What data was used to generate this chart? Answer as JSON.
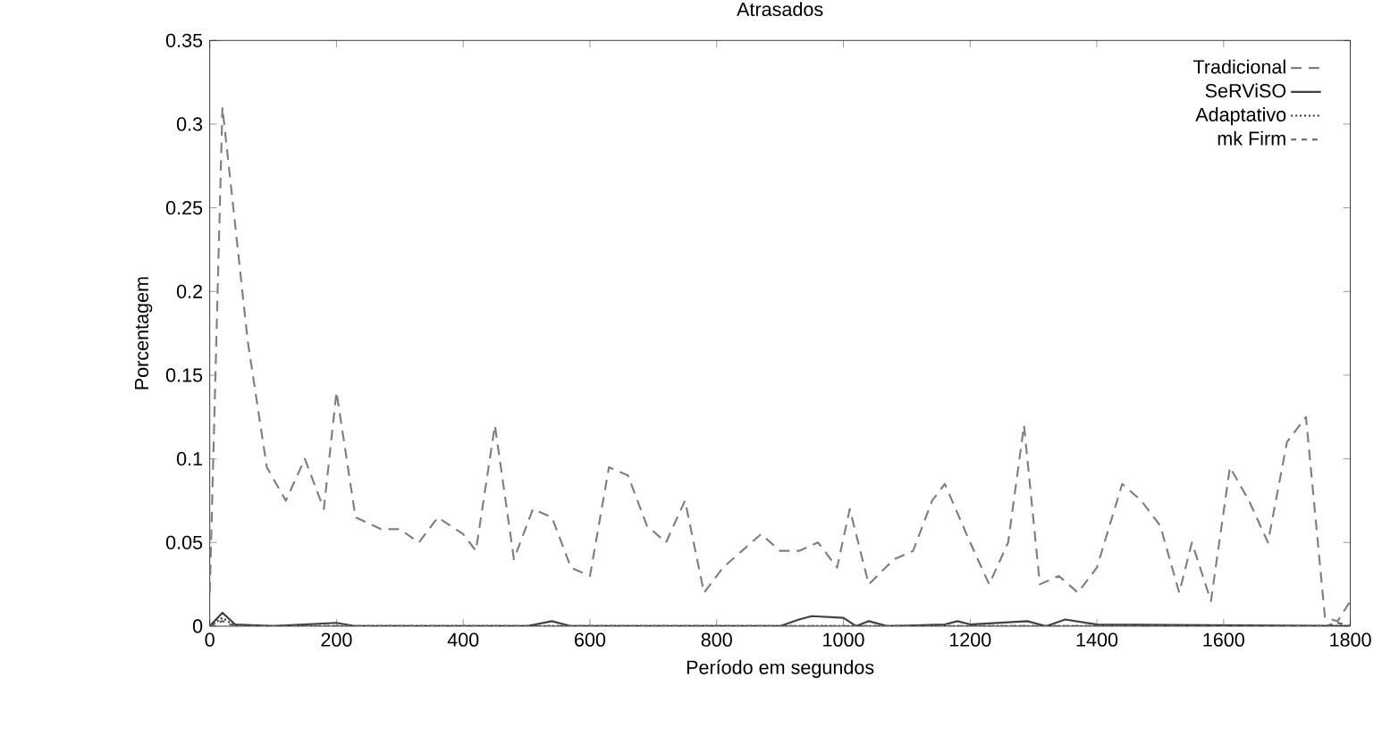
{
  "chart_data": {
    "type": "line",
    "title": "Atrasados",
    "xlabel": "Período em segundos",
    "ylabel": "Porcentagem",
    "xlim": [
      0,
      1800
    ],
    "xticks": [
      0,
      200,
      400,
      600,
      800,
      1000,
      1200,
      1400,
      1600,
      1800
    ],
    "ylim": [
      0,
      0.35
    ],
    "yticks": [
      0,
      0.05,
      0.1,
      0.15,
      0.2,
      0.25,
      0.3,
      0.35
    ],
    "legend": "top right",
    "grid": false,
    "marker": "none",
    "series": [
      {
        "name": "Tradicional",
        "color": "#808080",
        "line_style": "dashed",
        "x": [
          0,
          20,
          40,
          60,
          90,
          120,
          150,
          180,
          200,
          230,
          270,
          300,
          330,
          360,
          400,
          420,
          450,
          480,
          510,
          540,
          570,
          600,
          630,
          660,
          690,
          720,
          750,
          780,
          810,
          840,
          870,
          900,
          930,
          960,
          990,
          1010,
          1040,
          1080,
          1110,
          1140,
          1160,
          1200,
          1230,
          1260,
          1285,
          1310,
          1340,
          1370,
          1400,
          1440,
          1470,
          1500,
          1530,
          1550,
          1580,
          1610,
          1640,
          1670,
          1700,
          1730,
          1760,
          1780,
          1800
        ],
        "values": [
          0.02,
          0.31,
          0.24,
          0.17,
          0.095,
          0.075,
          0.1,
          0.07,
          0.14,
          0.065,
          0.058,
          0.058,
          0.05,
          0.065,
          0.055,
          0.045,
          0.12,
          0.04,
          0.07,
          0.065,
          0.035,
          0.03,
          0.095,
          0.09,
          0.06,
          0.05,
          0.075,
          0.02,
          0.035,
          0.045,
          0.055,
          0.045,
          0.045,
          0.05,
          0.035,
          0.07,
          0.025,
          0.04,
          0.045,
          0.075,
          0.085,
          0.05,
          0.025,
          0.05,
          0.12,
          0.025,
          0.03,
          0.02,
          0.035,
          0.085,
          0.075,
          0.06,
          0.02,
          0.05,
          0.015,
          0.095,
          0.075,
          0.05,
          0.11,
          0.125,
          0.005,
          0.003,
          0.015
        ]
      },
      {
        "name": "SeRViSO",
        "color": "#404040",
        "line_style": "solid",
        "x": [
          0,
          20,
          40,
          100,
          200,
          230,
          500,
          540,
          570,
          900,
          930,
          950,
          1000,
          1020,
          1040,
          1070,
          1160,
          1180,
          1200,
          1290,
          1320,
          1350,
          1400,
          1800
        ],
        "values": [
          0,
          0.008,
          0.001,
          0,
          0.002,
          0,
          0,
          0.003,
          0,
          0,
          0.004,
          0.006,
          0.005,
          0,
          0.003,
          0,
          0.001,
          0.003,
          0.001,
          0.003,
          0,
          0.004,
          0.001,
          0
        ]
      },
      {
        "name": "Adaptativo",
        "color": "#303030",
        "line_style": "dotted",
        "x": [
          0,
          20,
          40,
          1800
        ],
        "values": [
          0,
          0.005,
          0,
          0
        ]
      },
      {
        "name": "mk Firm",
        "color": "#606060",
        "line_style": "loosely dashed",
        "x": [
          0,
          20,
          40,
          1760,
          1780,
          1800
        ],
        "values": [
          0,
          0.003,
          0,
          0,
          0.002,
          0
        ]
      }
    ]
  }
}
